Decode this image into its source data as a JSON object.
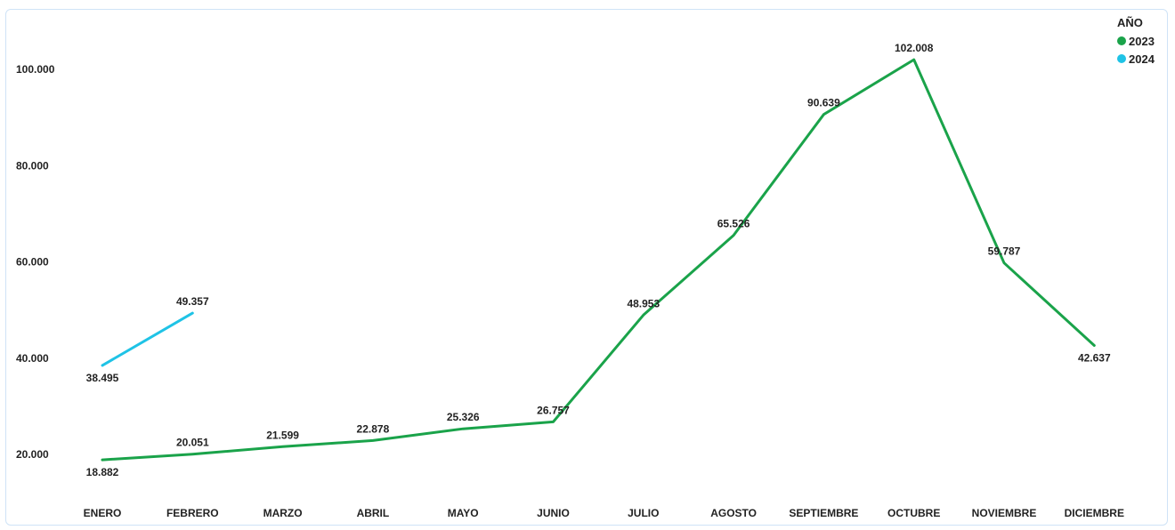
{
  "chart_data": {
    "type": "line",
    "categories": [
      "ENERO",
      "FEBRERO",
      "MARZO",
      "ABRIL",
      "MAYO",
      "JUNIO",
      "JULIO",
      "AGOSTO",
      "SEPTIEMBRE",
      "OCTUBRE",
      "NOVIEMBRE",
      "DICIEMBRE"
    ],
    "yticks": [
      20000,
      40000,
      60000,
      80000,
      100000
    ],
    "ytick_labels": [
      "20.000",
      "40.000",
      "60.000",
      "80.000",
      "100.000"
    ],
    "ylim": [
      10000,
      108000
    ],
    "legend_title": "AÑO",
    "legend_position": "top-right",
    "grid": false,
    "series": [
      {
        "name": "2023",
        "color": "#1aa34a",
        "values": [
          18882,
          20051,
          21599,
          22878,
          25326,
          26757,
          48953,
          65526,
          90639,
          102008,
          59787,
          42637
        ],
        "labels": [
          "18.882",
          "20.051",
          "21.599",
          "22.878",
          "25.326",
          "26.757",
          "48.953",
          "65.526",
          "90.639",
          "102.008",
          "59.787",
          "42.637"
        ],
        "label_pos": [
          "below",
          "above",
          "above",
          "above",
          "above",
          "above",
          "above",
          "above",
          "above",
          "above",
          "above",
          "below"
        ]
      },
      {
        "name": "2024",
        "color": "#1fc3e6",
        "values": [
          38495,
          49357,
          null,
          null,
          null,
          null,
          null,
          null,
          null,
          null,
          null,
          null
        ],
        "labels": [
          "38.495",
          "49.357",
          null,
          null,
          null,
          null,
          null,
          null,
          null,
          null,
          null,
          null
        ],
        "label_pos": [
          "below",
          "above",
          null,
          null,
          null,
          null,
          null,
          null,
          null,
          null,
          null,
          null
        ]
      }
    ]
  }
}
